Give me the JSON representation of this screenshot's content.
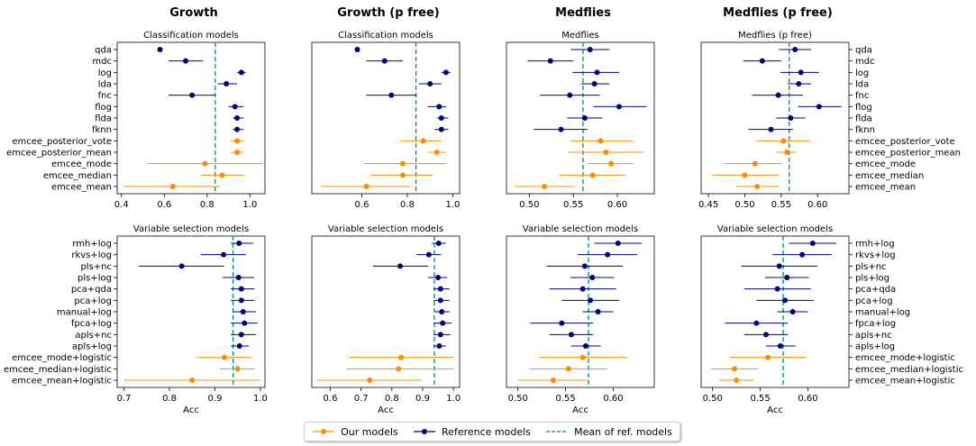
{
  "colors": {
    "ours": "#ff8c00",
    "ref": "#000080",
    "mean": "#008b8b"
  },
  "columns": [
    "Growth",
    "Growth (p free)",
    "Medflies",
    "Medflies (p free)"
  ],
  "legend": {
    "ours": "Our models",
    "ref": "Reference models",
    "mean": "Mean of ref. models"
  },
  "chart_data": [
    {
      "type": "scatter",
      "title": "Classification models",
      "xlabel": "",
      "xticks": [
        "0.4",
        "0.6",
        "0.8",
        "1.0"
      ],
      "xtick_values": [
        0.4,
        0.6,
        0.8,
        1.0
      ],
      "xlim": [
        0.38,
        1.07
      ],
      "mean_line": 0.838,
      "categories": [
        "qda",
        "mdc",
        "log",
        "lda",
        "fnc",
        "flog",
        "flda",
        "fknn",
        "emcee_posterior_vote",
        "emcee_posterior_mean",
        "emcee_mode",
        "emcee_median",
        "emcee_mean"
      ],
      "groups": [
        "ref",
        "ref",
        "ref",
        "ref",
        "ref",
        "ref",
        "ref",
        "ref",
        "ours",
        "ours",
        "ours",
        "ours",
        "ours"
      ],
      "values": [
        0.58,
        0.7,
        0.96,
        0.89,
        0.73,
        0.93,
        0.94,
        0.94,
        0.94,
        0.94,
        0.79,
        0.87,
        0.64
      ],
      "err_low": [
        0.58,
        0.62,
        0.94,
        0.85,
        0.62,
        0.9,
        0.92,
        0.92,
        0.91,
        0.91,
        0.52,
        0.77,
        0.41
      ],
      "err_high": [
        0.58,
        0.78,
        0.98,
        0.94,
        0.84,
        0.97,
        0.97,
        0.97,
        0.97,
        0.97,
        1.06,
        0.97,
        0.86
      ]
    },
    {
      "type": "scatter",
      "title": "Classification models",
      "xlabel": "",
      "xticks": [
        "0.6",
        "0.8",
        "1.0"
      ],
      "xtick_values": [
        0.6,
        0.8,
        1.0
      ],
      "xlim": [
        0.38,
        1.03
      ],
      "mean_line": 0.838,
      "categories": [
        "qda",
        "mdc",
        "log",
        "lda",
        "fnc",
        "flog",
        "flda",
        "fknn",
        "emcee_posterior_vote",
        "emcee_posterior_mean",
        "emcee_mode",
        "emcee_median",
        "emcee_mean"
      ],
      "groups": [
        "ref",
        "ref",
        "ref",
        "ref",
        "ref",
        "ref",
        "ref",
        "ref",
        "ours",
        "ours",
        "ours",
        "ours",
        "ours"
      ],
      "values": [
        0.58,
        0.7,
        0.97,
        0.9,
        0.73,
        0.94,
        0.95,
        0.95,
        0.87,
        0.93,
        0.78,
        0.78,
        0.62
      ],
      "err_low": [
        0.58,
        0.62,
        0.95,
        0.85,
        0.62,
        0.89,
        0.93,
        0.92,
        0.77,
        0.89,
        0.61,
        0.64,
        0.42
      ],
      "err_high": [
        0.58,
        0.78,
        0.99,
        0.95,
        0.84,
        0.97,
        0.98,
        0.98,
        0.95,
        0.97,
        0.97,
        0.91,
        0.81
      ]
    },
    {
      "type": "scatter",
      "title": "Medflies",
      "xlabel": "",
      "xticks": [
        "0.50",
        "0.55",
        "0.60"
      ],
      "xtick_values": [
        0.5,
        0.55,
        0.6
      ],
      "xlim": [
        0.474,
        0.642
      ],
      "mean_line": 0.561,
      "categories": [
        "qda",
        "mdc",
        "log",
        "lda",
        "fnc",
        "flog",
        "flda",
        "fknn",
        "emcee_posterior_vote",
        "emcee_posterior_mean",
        "emcee_mode",
        "emcee_median",
        "emcee_mean"
      ],
      "groups": [
        "ref",
        "ref",
        "ref",
        "ref",
        "ref",
        "ref",
        "ref",
        "ref",
        "ours",
        "ours",
        "ours",
        "ours",
        "ours"
      ],
      "values": [
        0.569,
        0.524,
        0.577,
        0.574,
        0.546,
        0.602,
        0.563,
        0.536,
        0.581,
        0.587,
        0.593,
        0.572,
        0.517
      ],
      "err_low": [
        0.547,
        0.498,
        0.549,
        0.559,
        0.512,
        0.573,
        0.543,
        0.505,
        0.547,
        0.544,
        0.566,
        0.534,
        0.483
      ],
      "err_high": [
        0.591,
        0.55,
        0.602,
        0.591,
        0.58,
        0.633,
        0.583,
        0.566,
        0.617,
        0.63,
        0.618,
        0.609,
        0.551
      ]
    },
    {
      "type": "scatter",
      "title": "Medflies (p free)",
      "xlabel": "",
      "xticks": [
        "0.45",
        "0.50",
        "0.55",
        "0.60"
      ],
      "xtick_values": [
        0.45,
        0.5,
        0.55,
        0.6
      ],
      "xlim": [
        0.44,
        0.643
      ],
      "mean_line": 0.561,
      "categories": [
        "qda",
        "mdc",
        "log",
        "lda",
        "fnc",
        "flog",
        "flda",
        "fknn",
        "emcee_posterior_vote",
        "emcee_posterior_mean",
        "emcee_mode",
        "emcee_median",
        "emcee_mean"
      ],
      "groups": [
        "ref",
        "ref",
        "ref",
        "ref",
        "ref",
        "ref",
        "ref",
        "ref",
        "ours",
        "ours",
        "ours",
        "ours",
        "ours"
      ],
      "values": [
        0.569,
        0.524,
        0.577,
        0.574,
        0.546,
        0.602,
        0.563,
        0.536,
        0.553,
        0.558,
        0.514,
        0.5,
        0.517
      ],
      "err_low": [
        0.547,
        0.498,
        0.549,
        0.559,
        0.51,
        0.573,
        0.543,
        0.505,
        0.516,
        0.543,
        0.471,
        0.455,
        0.488
      ],
      "err_high": [
        0.591,
        0.55,
        0.602,
        0.591,
        0.58,
        0.633,
        0.583,
        0.566,
        0.59,
        0.571,
        0.551,
        0.546,
        0.547
      ]
    },
    {
      "type": "scatter",
      "title": "Variable selection models",
      "xlabel": "Acc",
      "xticks": [
        "0.7",
        "0.8",
        "0.9",
        "1.0"
      ],
      "xtick_values": [
        0.7,
        0.8,
        0.9,
        1.0
      ],
      "xlim": [
        0.685,
        1.01
      ],
      "mean_line": 0.94,
      "categories": [
        "rmh+log",
        "rkvs+log",
        "pls+nc",
        "pls+log",
        "pca+qda",
        "pca+log",
        "manual+log",
        "fpca+log",
        "apls+nc",
        "apls+log",
        "emcee_mode+logistic",
        "emcee_median+logistic",
        "emcee_mean+logistic"
      ],
      "groups": [
        "ref",
        "ref",
        "ref",
        "ref",
        "ref",
        "ref",
        "ref",
        "ref",
        "ref",
        "ref",
        "ours",
        "ours",
        "ours"
      ],
      "values": [
        0.953,
        0.919,
        0.827,
        0.952,
        0.958,
        0.958,
        0.962,
        0.965,
        0.958,
        0.954,
        0.921,
        0.95,
        0.85
      ],
      "err_low": [
        0.935,
        0.869,
        0.733,
        0.917,
        0.935,
        0.935,
        0.94,
        0.935,
        0.935,
        0.935,
        0.862,
        0.91,
        0.7
      ],
      "err_high": [
        0.984,
        0.968,
        0.92,
        0.986,
        0.987,
        0.987,
        0.99,
        0.994,
        0.99,
        0.975,
        0.981,
        0.988,
        1.0
      ]
    },
    {
      "type": "scatter",
      "title": "Variable selection models",
      "xlabel": "Acc",
      "xticks": [
        "0.6",
        "0.7",
        "0.8",
        "0.9",
        "1.0"
      ],
      "xtick_values": [
        0.6,
        0.7,
        0.8,
        0.9,
        1.0
      ],
      "xlim": [
        0.54,
        1.02
      ],
      "mean_line": 0.938,
      "categories": [
        "rmh+log",
        "rkvs+log",
        "pls+nc",
        "pls+log",
        "pca+qda",
        "pca+log",
        "manual+log",
        "fpca+log",
        "apls+nc",
        "apls+log",
        "emcee_mode+logistic",
        "emcee_median+logistic",
        "emcee_mean+logistic"
      ],
      "groups": [
        "ref",
        "ref",
        "ref",
        "ref",
        "ref",
        "ref",
        "ref",
        "ref",
        "ref",
        "ref",
        "ours",
        "ours",
        "ours"
      ],
      "values": [
        0.952,
        0.92,
        0.827,
        0.95,
        0.958,
        0.958,
        0.962,
        0.965,
        0.958,
        0.954,
        0.83,
        0.822,
        0.728
      ],
      "err_low": [
        0.93,
        0.88,
        0.738,
        0.918,
        0.935,
        0.935,
        0.94,
        0.935,
        0.935,
        0.935,
        0.662,
        0.651,
        0.556
      ],
      "err_high": [
        0.975,
        0.96,
        0.918,
        0.98,
        0.987,
        0.987,
        0.987,
        0.994,
        0.99,
        0.975,
        1.0,
        1.0,
        0.895
      ]
    },
    {
      "type": "scatter",
      "title": "Variable selection models",
      "xlabel": "Acc",
      "xticks": [
        "0.50",
        "0.55",
        "0.60"
      ],
      "xtick_values": [
        0.5,
        0.55,
        0.6
      ],
      "xlim": [
        0.488,
        0.643
      ],
      "mean_line": 0.574,
      "categories": [
        "rmh+log",
        "rkvs+log",
        "pls+nc",
        "pls+log",
        "pca+qda",
        "pca+log",
        "manual+log",
        "fpca+log",
        "apls+nc",
        "apls+log",
        "emcee_mode+logistic",
        "emcee_median+logistic",
        "emcee_mean+logistic"
      ],
      "groups": [
        "ref",
        "ref",
        "ref",
        "ref",
        "ref",
        "ref",
        "ref",
        "ref",
        "ref",
        "ref",
        "ours",
        "ours",
        "ours"
      ],
      "values": [
        0.605,
        0.594,
        0.57,
        0.578,
        0.568,
        0.576,
        0.584,
        0.546,
        0.556,
        0.571,
        0.568,
        0.553,
        0.537
      ],
      "err_low": [
        0.58,
        0.563,
        0.53,
        0.555,
        0.533,
        0.546,
        0.568,
        0.513,
        0.533,
        0.556,
        0.522,
        0.512,
        0.5
      ],
      "err_high": [
        0.63,
        0.625,
        0.61,
        0.601,
        0.603,
        0.606,
        0.6,
        0.579,
        0.579,
        0.587,
        0.614,
        0.594,
        0.574
      ]
    },
    {
      "type": "scatter",
      "title": "Variable selection models",
      "xlabel": "Acc",
      "xticks": [
        "0.50",
        "0.55",
        "0.60"
      ],
      "xtick_values": [
        0.5,
        0.55,
        0.6
      ],
      "xlim": [
        0.488,
        0.643
      ],
      "mean_line": 0.574,
      "categories": [
        "rmh+log",
        "rkvs+log",
        "pls+nc",
        "pls+log",
        "pca+qda",
        "pca+log",
        "manual+log",
        "fpca+log",
        "apls+nc",
        "apls+log",
        "emcee_mode+logistic",
        "emcee_median+logistic",
        "emcee_mean+logistic"
      ],
      "groups": [
        "ref",
        "ref",
        "ref",
        "ref",
        "ref",
        "ref",
        "ref",
        "ref",
        "ref",
        "ref",
        "ours",
        "ours",
        "ours"
      ],
      "values": [
        0.605,
        0.594,
        0.57,
        0.578,
        0.568,
        0.576,
        0.584,
        0.546,
        0.556,
        0.571,
        0.558,
        0.523,
        0.525
      ],
      "err_low": [
        0.58,
        0.563,
        0.53,
        0.555,
        0.533,
        0.546,
        0.568,
        0.513,
        0.533,
        0.556,
        0.518,
        0.498,
        0.507
      ],
      "err_high": [
        0.63,
        0.625,
        0.61,
        0.601,
        0.603,
        0.606,
        0.6,
        0.579,
        0.579,
        0.587,
        0.598,
        0.548,
        0.543
      ]
    }
  ]
}
